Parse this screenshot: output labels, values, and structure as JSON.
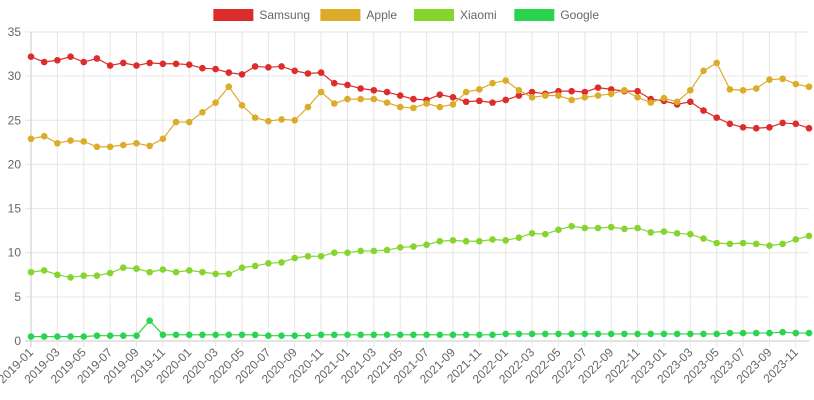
{
  "chart_data": {
    "type": "line",
    "title": "",
    "xlabel": "",
    "ylabel": "",
    "ylim": [
      0,
      35
    ],
    "yticks": [
      0,
      5,
      10,
      15,
      20,
      25,
      30,
      35
    ],
    "grid": true,
    "legend_position": "top-center",
    "x": [
      "2019-01",
      "2019-02",
      "2019-03",
      "2019-04",
      "2019-05",
      "2019-06",
      "2019-07",
      "2019-08",
      "2019-09",
      "2019-10",
      "2019-11",
      "2019-12",
      "2020-01",
      "2020-02",
      "2020-03",
      "2020-04",
      "2020-05",
      "2020-06",
      "2020-07",
      "2020-08",
      "2020-09",
      "2020-10",
      "2020-11",
      "2020-12",
      "2021-01",
      "2021-02",
      "2021-03",
      "2021-04",
      "2021-05",
      "2021-06",
      "2021-07",
      "2021-08",
      "2021-09",
      "2021-10",
      "2021-11",
      "2021-12",
      "2022-01",
      "2022-02",
      "2022-03",
      "2022-04",
      "2022-05",
      "2022-06",
      "2022-07",
      "2022-08",
      "2022-09",
      "2022-10",
      "2022-11",
      "2022-12",
      "2023-01",
      "2023-02",
      "2023-03",
      "2023-04",
      "2023-05",
      "2023-06",
      "2023-07",
      "2023-08",
      "2023-09",
      "2023-10",
      "2023-11",
      "2023-12"
    ],
    "x_tick_labels": [
      "2019-01",
      "2019-03",
      "2019-05",
      "2019-07",
      "2019-09",
      "2019-11",
      "2020-01",
      "2020-03",
      "2020-05",
      "2020-07",
      "2020-09",
      "2020-11",
      "2021-01",
      "2021-03",
      "2021-05",
      "2021-07",
      "2021-09",
      "2021-11",
      "2022-01",
      "2022-03",
      "2022-05",
      "2022-07",
      "2022-09",
      "2022-11",
      "2023-01",
      "2023-03",
      "2023-05",
      "2023-07",
      "2023-09",
      "2023-11"
    ],
    "series": [
      {
        "name": "Samsung",
        "color": "#dc2c2c",
        "values": [
          32.2,
          31.6,
          31.8,
          32.2,
          31.6,
          32.0,
          31.2,
          31.5,
          31.2,
          31.5,
          31.4,
          31.4,
          31.3,
          30.9,
          30.8,
          30.4,
          30.2,
          31.1,
          31.0,
          31.1,
          30.6,
          30.3,
          30.4,
          29.2,
          29.0,
          28.6,
          28.4,
          28.2,
          27.8,
          27.4,
          27.3,
          27.9,
          27.6,
          27.1,
          27.2,
          27.0,
          27.3,
          27.8,
          28.2,
          28.0,
          28.3,
          28.3,
          28.2,
          28.7,
          28.5,
          28.3,
          28.3,
          27.4,
          27.2,
          26.8,
          27.1,
          26.1,
          25.3,
          24.6,
          24.2,
          24.1,
          24.2,
          24.7,
          24.6,
          24.1
        ]
      },
      {
        "name": "Apple",
        "color": "#dbab29",
        "values": [
          22.9,
          23.2,
          22.4,
          22.7,
          22.6,
          22.0,
          22.0,
          22.2,
          22.4,
          22.1,
          22.9,
          24.8,
          24.8,
          25.9,
          27.0,
          28.8,
          26.7,
          25.3,
          24.9,
          25.1,
          25.0,
          26.5,
          28.2,
          26.9,
          27.4,
          27.4,
          27.4,
          27.0,
          26.5,
          26.4,
          26.9,
          26.5,
          26.8,
          28.2,
          28.5,
          29.2,
          29.5,
          28.4,
          27.6,
          27.8,
          27.8,
          27.3,
          27.6,
          27.8,
          28.0,
          28.4,
          27.6,
          27.0,
          27.5,
          27.1,
          28.4,
          30.6,
          31.5,
          28.5,
          28.4,
          28.6,
          29.6,
          29.7,
          29.1,
          28.8
        ]
      },
      {
        "name": "Xiaomi",
        "color": "#85d52e",
        "values": [
          7.8,
          8.0,
          7.5,
          7.2,
          7.4,
          7.4,
          7.7,
          8.3,
          8.2,
          7.8,
          8.1,
          7.8,
          8.0,
          7.8,
          7.6,
          7.6,
          8.3,
          8.5,
          8.8,
          8.9,
          9.4,
          9.6,
          9.6,
          10.0,
          10.0,
          10.2,
          10.2,
          10.3,
          10.6,
          10.7,
          10.9,
          11.3,
          11.4,
          11.3,
          11.3,
          11.5,
          11.4,
          11.7,
          12.2,
          12.1,
          12.6,
          13.0,
          12.8,
          12.8,
          12.9,
          12.7,
          12.8,
          12.3,
          12.4,
          12.2,
          12.1,
          11.6,
          11.1,
          11.0,
          11.1,
          11.0,
          10.8,
          11.0,
          11.5,
          11.9
        ]
      },
      {
        "name": "Google",
        "color": "#2bd44e",
        "values": [
          0.5,
          0.5,
          0.5,
          0.5,
          0.5,
          0.6,
          0.6,
          0.6,
          0.6,
          2.3,
          0.7,
          0.7,
          0.7,
          0.7,
          0.7,
          0.7,
          0.7,
          0.7,
          0.6,
          0.6,
          0.6,
          0.6,
          0.7,
          0.7,
          0.7,
          0.7,
          0.7,
          0.7,
          0.7,
          0.7,
          0.7,
          0.7,
          0.7,
          0.7,
          0.7,
          0.7,
          0.8,
          0.8,
          0.8,
          0.8,
          0.8,
          0.8,
          0.8,
          0.8,
          0.8,
          0.8,
          0.8,
          0.8,
          0.8,
          0.8,
          0.8,
          0.8,
          0.8,
          0.9,
          0.9,
          0.9,
          0.9,
          1.0,
          0.9,
          0.9
        ]
      }
    ]
  }
}
